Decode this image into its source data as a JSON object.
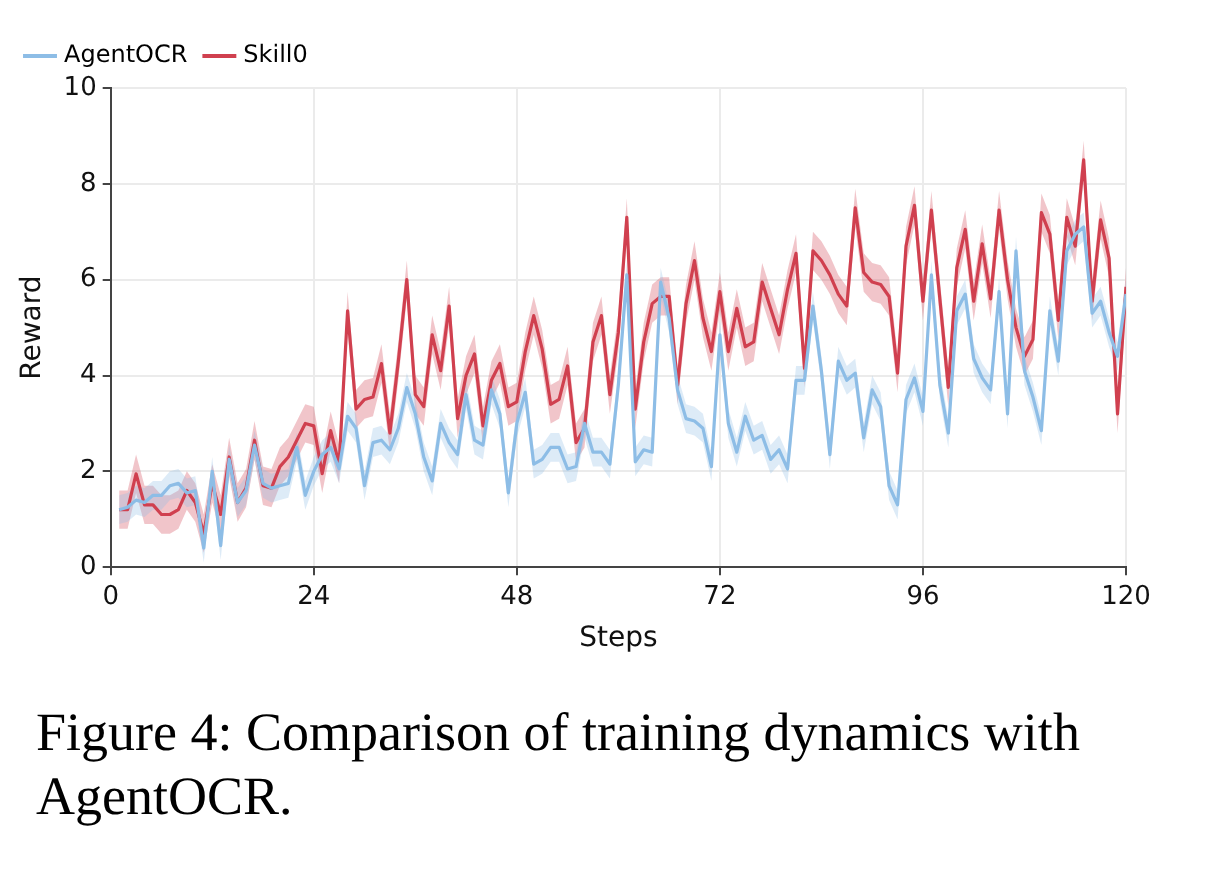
{
  "chart_data": {
    "type": "line",
    "xlabel": "Steps",
    "ylabel": "Reward",
    "annotations": [
      "Figure 4: Comparison of training dynamics with AgentOCR."
    ],
    "x": [
      1,
      2,
      3,
      4,
      5,
      6,
      7,
      8,
      9,
      10,
      11,
      12,
      13,
      14,
      15,
      16,
      17,
      18,
      19,
      20,
      21,
      22,
      23,
      24,
      25,
      26,
      27,
      28,
      29,
      30,
      31,
      32,
      33,
      34,
      35,
      36,
      37,
      38,
      39,
      40,
      41,
      42,
      43,
      44,
      45,
      46,
      47,
      48,
      49,
      50,
      51,
      52,
      53,
      54,
      55,
      56,
      57,
      58,
      59,
      60,
      61,
      62,
      63,
      64,
      65,
      66,
      67,
      68,
      69,
      70,
      71,
      72,
      73,
      74,
      75,
      76,
      77,
      78,
      79,
      80,
      81,
      82,
      83,
      84,
      85,
      86,
      87,
      88,
      89,
      90,
      91,
      92,
      93,
      94,
      95,
      96,
      97,
      98,
      99,
      100,
      101,
      102,
      103,
      104,
      105,
      106,
      107,
      108,
      109,
      110,
      111,
      112,
      113,
      114,
      115,
      116,
      117,
      118,
      119,
      120
    ],
    "xlim": [
      0,
      120
    ],
    "xticks": [
      0,
      24,
      48,
      72,
      96,
      120
    ],
    "ylim": [
      0,
      10
    ],
    "yticks": [
      0,
      2,
      4,
      6,
      8,
      10
    ],
    "grid": true,
    "legend": "top left",
    "marker": "none",
    "line_style": "solid",
    "series": [
      {
        "name": "AgentOCR",
        "color": "#8dbde6",
        "values": [
          1.2,
          1.25,
          1.4,
          1.35,
          1.5,
          1.5,
          1.7,
          1.75,
          1.55,
          1.6,
          0.4,
          2.0,
          0.45,
          2.25,
          1.35,
          1.6,
          2.55,
          1.75,
          1.65,
          1.7,
          1.75,
          2.5,
          1.5,
          2.0,
          2.35,
          2.5,
          2.05,
          3.15,
          2.9,
          1.7,
          2.6,
          2.65,
          2.45,
          2.9,
          3.75,
          3.2,
          2.3,
          1.8,
          3.0,
          2.6,
          2.35,
          3.6,
          2.65,
          2.55,
          3.7,
          3.2,
          1.55,
          3.0,
          3.65,
          2.15,
          2.25,
          2.5,
          2.5,
          2.05,
          2.1,
          3.0,
          2.4,
          2.4,
          2.15,
          3.8,
          6.1,
          2.2,
          2.45,
          2.4,
          5.95,
          5.2,
          3.7,
          3.1,
          3.05,
          2.9,
          2.1,
          4.85,
          3.0,
          2.4,
          3.15,
          2.65,
          2.75,
          2.25,
          2.45,
          2.05,
          3.9,
          3.9,
          5.45,
          4.1,
          2.35,
          4.3,
          3.9,
          4.05,
          2.7,
          3.7,
          3.35,
          1.7,
          1.3,
          3.5,
          3.95,
          3.25,
          6.1,
          3.8,
          2.8,
          5.35,
          5.7,
          4.35,
          3.95,
          3.7,
          5.75,
          3.2,
          6.6,
          4.1,
          3.55,
          2.85,
          5.35,
          4.3,
          6.6,
          6.95,
          7.1,
          5.3,
          5.55,
          4.9,
          4.4,
          5.7
        ],
        "lower": [
          0.9,
          0.95,
          1.1,
          1.05,
          1.2,
          1.2,
          1.4,
          1.45,
          1.25,
          1.3,
          0.1,
          1.7,
          0.15,
          1.95,
          1.05,
          1.3,
          2.25,
          1.45,
          1.35,
          1.4,
          1.45,
          2.2,
          1.2,
          1.7,
          2.05,
          2.2,
          1.75,
          2.85,
          2.6,
          1.4,
          2.3,
          2.35,
          2.15,
          2.6,
          3.45,
          2.9,
          2.0,
          1.5,
          2.7,
          2.3,
          2.05,
          3.3,
          2.35,
          2.25,
          3.4,
          2.9,
          1.25,
          2.7,
          3.35,
          1.85,
          1.95,
          2.2,
          2.2,
          1.75,
          1.8,
          2.7,
          2.1,
          2.1,
          1.85,
          3.5,
          5.8,
          1.9,
          2.15,
          2.1,
          5.65,
          4.9,
          3.4,
          2.8,
          2.75,
          2.6,
          1.8,
          4.55,
          2.7,
          2.1,
          2.85,
          2.35,
          2.45,
          1.95,
          2.15,
          1.75,
          3.6,
          3.6,
          5.15,
          3.8,
          2.05,
          4.0,
          3.6,
          3.75,
          2.4,
          3.4,
          3.05,
          1.4,
          1.0,
          3.2,
          3.65,
          2.95,
          5.8,
          3.5,
          2.5,
          5.05,
          5.4,
          4.05,
          3.65,
          3.4,
          5.45,
          2.9,
          6.3,
          3.8,
          3.25,
          2.55,
          5.05,
          4.0,
          6.3,
          6.65,
          6.8,
          5.0,
          5.25,
          4.6,
          4.1,
          5.4
        ],
        "upper": [
          1.5,
          1.55,
          1.7,
          1.65,
          1.8,
          1.8,
          2.0,
          2.05,
          1.85,
          1.9,
          0.7,
          2.3,
          0.75,
          2.55,
          1.65,
          1.9,
          2.85,
          2.05,
          1.95,
          2.0,
          2.05,
          2.8,
          1.8,
          2.3,
          2.65,
          2.8,
          2.35,
          3.45,
          3.2,
          2.0,
          2.9,
          2.95,
          2.75,
          3.2,
          4.05,
          3.5,
          2.6,
          2.1,
          3.3,
          2.9,
          2.65,
          3.9,
          2.95,
          2.85,
          4.0,
          3.5,
          1.85,
          3.3,
          3.95,
          2.45,
          2.55,
          2.8,
          2.8,
          2.35,
          2.4,
          3.3,
          2.7,
          2.7,
          2.45,
          4.1,
          6.4,
          2.5,
          2.75,
          2.7,
          6.25,
          5.5,
          4.0,
          3.4,
          3.35,
          3.2,
          2.4,
          5.15,
          3.3,
          2.7,
          3.45,
          2.95,
          3.05,
          2.55,
          2.75,
          2.35,
          4.2,
          4.2,
          5.75,
          4.4,
          2.65,
          4.6,
          4.2,
          4.35,
          3.0,
          4.0,
          3.65,
          2.0,
          1.6,
          3.8,
          4.25,
          3.55,
          6.4,
          4.1,
          3.1,
          5.65,
          6.0,
          4.65,
          4.25,
          4.0,
          6.05,
          3.5,
          6.9,
          4.4,
          3.85,
          3.15,
          5.65,
          4.6,
          6.9,
          7.25,
          7.4,
          5.6,
          5.85,
          5.2,
          4.7,
          6.0
        ]
      },
      {
        "name": "Skill0",
        "color": "#d0404f",
        "values": [
          1.2,
          1.2,
          1.95,
          1.3,
          1.3,
          1.1,
          1.1,
          1.2,
          1.6,
          1.35,
          0.7,
          1.75,
          1.1,
          2.3,
          1.35,
          1.65,
          2.65,
          1.7,
          1.65,
          2.1,
          2.3,
          2.65,
          3.0,
          2.95,
          1.95,
          2.85,
          2.15,
          5.35,
          3.3,
          3.5,
          3.55,
          4.25,
          2.8,
          4.3,
          6.0,
          3.6,
          3.35,
          4.85,
          4.1,
          5.45,
          3.1,
          4.0,
          4.45,
          2.95,
          3.9,
          4.25,
          3.35,
          3.45,
          4.5,
          5.25,
          4.55,
          3.4,
          3.5,
          4.2,
          2.6,
          2.9,
          4.7,
          5.25,
          3.6,
          4.9,
          7.3,
          3.3,
          4.7,
          5.5,
          5.65,
          5.65,
          3.8,
          5.5,
          6.4,
          5.2,
          4.5,
          5.75,
          4.5,
          5.4,
          4.6,
          4.7,
          5.95,
          5.4,
          4.85,
          5.8,
          6.55,
          4.15,
          6.6,
          6.4,
          6.1,
          5.7,
          5.45,
          7.5,
          6.15,
          5.95,
          5.9,
          5.65,
          4.05,
          6.7,
          7.55,
          5.55,
          7.45,
          5.6,
          3.75,
          6.25,
          7.05,
          5.55,
          6.75,
          5.6,
          7.45,
          6.0,
          5.0,
          4.4,
          4.75,
          7.4,
          6.95,
          5.15,
          7.3,
          6.7,
          8.5,
          5.55,
          7.25,
          6.45,
          3.2,
          5.85
        ],
        "lower": [
          0.8,
          0.8,
          1.55,
          0.9,
          0.9,
          0.7,
          0.7,
          0.8,
          1.2,
          0.95,
          0.3,
          1.35,
          0.7,
          1.9,
          0.95,
          1.25,
          2.25,
          1.3,
          1.25,
          1.7,
          1.9,
          2.25,
          2.6,
          2.55,
          1.55,
          2.45,
          1.75,
          4.95,
          2.9,
          3.1,
          3.15,
          3.85,
          2.4,
          3.9,
          5.6,
          3.2,
          2.95,
          4.45,
          3.7,
          5.05,
          2.7,
          3.6,
          4.05,
          2.55,
          3.5,
          3.85,
          2.95,
          3.05,
          4.1,
          4.85,
          4.15,
          3.0,
          3.1,
          3.8,
          2.2,
          2.5,
          4.3,
          4.85,
          3.2,
          4.5,
          6.9,
          2.9,
          4.3,
          5.1,
          5.25,
          5.25,
          3.4,
          5.1,
          6.0,
          4.8,
          4.1,
          5.35,
          4.1,
          5.0,
          4.2,
          4.3,
          5.55,
          5.0,
          4.45,
          5.4,
          6.15,
          3.75,
          6.2,
          6.0,
          5.7,
          5.3,
          5.05,
          7.1,
          5.75,
          5.55,
          5.5,
          5.25,
          3.65,
          6.3,
          7.15,
          5.15,
          7.05,
          5.2,
          3.35,
          5.85,
          6.65,
          5.15,
          6.35,
          5.2,
          7.05,
          5.6,
          4.6,
          4.0,
          4.35,
          7.0,
          6.55,
          4.75,
          6.9,
          6.3,
          8.1,
          5.15,
          6.85,
          6.05,
          2.8,
          5.45
        ],
        "upper": [
          1.6,
          1.6,
          2.35,
          1.7,
          1.7,
          1.5,
          1.5,
          1.6,
          2.0,
          1.75,
          1.1,
          2.15,
          1.5,
          2.7,
          1.75,
          2.05,
          3.05,
          2.1,
          2.05,
          2.5,
          2.7,
          3.05,
          3.4,
          3.35,
          2.35,
          3.25,
          2.55,
          5.75,
          3.7,
          3.9,
          3.95,
          4.65,
          3.2,
          4.7,
          6.4,
          4.0,
          3.75,
          5.25,
          4.5,
          5.85,
          3.5,
          4.4,
          4.85,
          3.35,
          4.3,
          4.65,
          3.75,
          3.85,
          4.9,
          5.65,
          4.95,
          3.8,
          3.9,
          4.6,
          3.0,
          3.3,
          5.1,
          5.65,
          4.0,
          5.3,
          7.7,
          3.7,
          5.1,
          5.9,
          6.05,
          6.05,
          4.2,
          5.9,
          6.8,
          5.6,
          4.9,
          6.15,
          4.9,
          5.8,
          5.0,
          5.1,
          6.35,
          5.8,
          5.25,
          6.2,
          6.95,
          4.55,
          7.0,
          6.8,
          6.5,
          6.1,
          5.85,
          7.9,
          6.55,
          6.35,
          6.3,
          6.05,
          4.45,
          7.1,
          7.95,
          5.95,
          7.85,
          6.0,
          4.15,
          6.65,
          7.45,
          5.95,
          7.15,
          6.0,
          7.85,
          6.4,
          5.4,
          4.8,
          5.15,
          7.8,
          7.35,
          5.55,
          7.7,
          7.1,
          8.9,
          5.95,
          7.65,
          6.85,
          3.6,
          6.25
        ]
      }
    ]
  }
}
